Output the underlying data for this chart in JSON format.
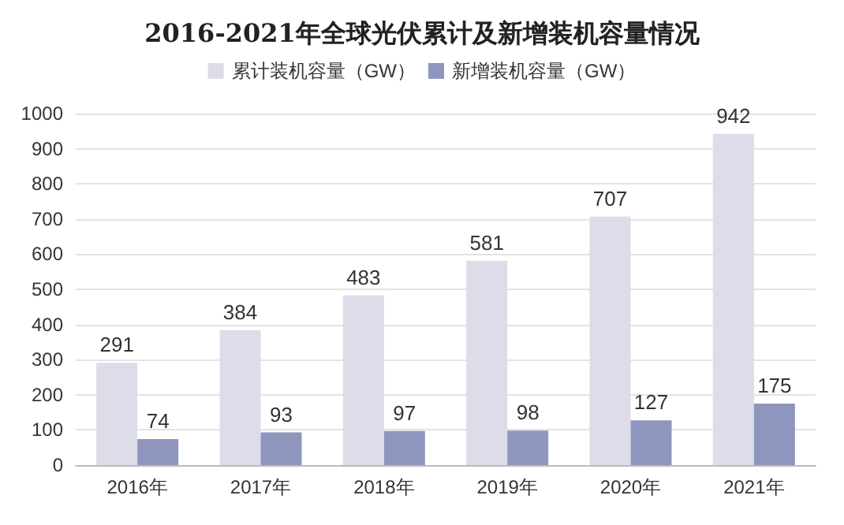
{
  "chart_data": {
    "type": "bar",
    "title": "2016-2021年全球光伏累计及新增装机容量情况",
    "categories": [
      "2016年",
      "2017年",
      "2018年",
      "2019年",
      "2020年",
      "2021年"
    ],
    "series": [
      {
        "name": "累计装机容量（GW）",
        "color": "#dcdde9",
        "values": [
          291,
          384,
          483,
          581,
          707,
          942
        ]
      },
      {
        "name": "新增装机容量（GW）",
        "color": "#8e96be",
        "values": [
          74,
          93,
          97,
          98,
          127,
          175
        ]
      }
    ],
    "ylim": [
      0,
      1000
    ],
    "yticks": [
      0,
      100,
      200,
      300,
      400,
      500,
      600,
      700,
      800,
      900,
      1000
    ],
    "grid": "y",
    "legend": "top",
    "data_labels": true
  }
}
